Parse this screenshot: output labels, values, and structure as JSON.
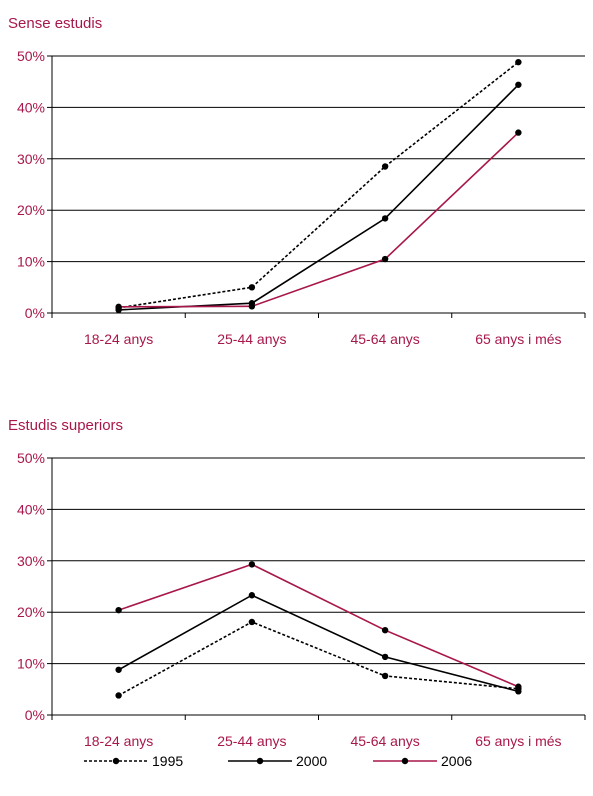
{
  "chart_data": [
    {
      "type": "line",
      "title": "Sense estudis",
      "categories": [
        "18-24 anys",
        "25-44 anys",
        "45-64 anys",
        "65 anys i més"
      ],
      "yticks": [
        "0%",
        "10%",
        "20%",
        "30%",
        "40%",
        "50%"
      ],
      "ylim": [
        0,
        50
      ],
      "grid": true,
      "series": [
        {
          "name": "1995",
          "values": [
            1.0,
            5.0,
            28.5,
            48.8
          ]
        },
        {
          "name": "2000",
          "values": [
            0.6,
            1.9,
            18.4,
            44.4
          ]
        },
        {
          "name": "2006",
          "values": [
            1.2,
            1.3,
            10.5,
            35.1
          ]
        }
      ]
    },
    {
      "type": "line",
      "title": "Estudis superiors",
      "categories": [
        "18-24 anys",
        "25-44 anys",
        "45-64 anys",
        "65 anys i més"
      ],
      "yticks": [
        "0%",
        "10%",
        "20%",
        "30%",
        "40%",
        "50%"
      ],
      "ylim": [
        0,
        50
      ],
      "grid": true,
      "series": [
        {
          "name": "1995",
          "values": [
            3.8,
            18.1,
            7.6,
            5.1
          ]
        },
        {
          "name": "2000",
          "values": [
            8.8,
            23.3,
            11.3,
            4.6
          ]
        },
        {
          "name": "2006",
          "values": [
            20.4,
            29.3,
            16.5,
            5.5
          ]
        }
      ]
    }
  ],
  "legend": {
    "position": "bottom",
    "items": [
      {
        "label": "1995",
        "color": "#000000",
        "style": "dashed"
      },
      {
        "label": "2000",
        "color": "#000000",
        "style": "solid"
      },
      {
        "label": "2006",
        "color": "#a8174b",
        "style": "solid"
      }
    ]
  },
  "colors": {
    "text": "#a8174b",
    "line_1995": "#000000",
    "line_2000": "#000000",
    "line_2006": "#a8174b",
    "axis": "#000000"
  }
}
